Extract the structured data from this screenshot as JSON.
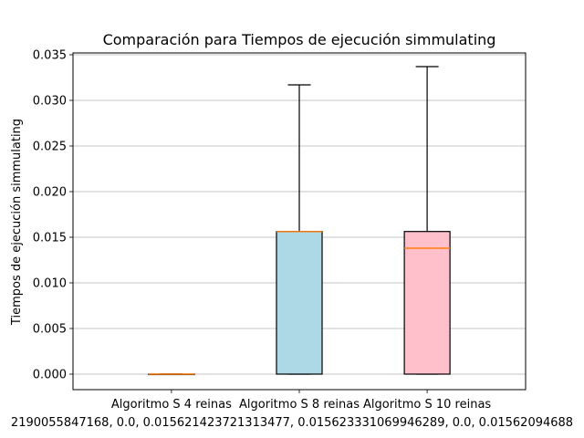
{
  "chart_data": {
    "type": "boxplot",
    "title": "Comparación para Tiempos de ejecución simmulating",
    "xlabel": "2190055847168, 0.0, 0.015621423721313477, 0.015623331069946289, 0.0, 0.01562094688",
    "ylabel": "Tiempos de ejecución simmulating",
    "ylim": [
      -0.0017,
      0.0352
    ],
    "yticks": [
      "0.000",
      "0.005",
      "0.010",
      "0.015",
      "0.020",
      "0.025",
      "0.030",
      "0.035"
    ],
    "grid": "y",
    "categories": [
      "Algoritmo S 4 reinas",
      "Algoritmo S 8 reinas",
      "Algoritmo S 10 reinas"
    ],
    "boxes": [
      {
        "whisker_low": 0.0,
        "q1": 0.0,
        "median": 0.0,
        "q3": 0.0,
        "whisker_high": 0.0,
        "color": "#ffa07a"
      },
      {
        "whisker_low": 0.0,
        "q1": 0.0,
        "median": 0.01562,
        "q3": 0.01563,
        "whisker_high": 0.0317,
        "color": "#add8e6"
      },
      {
        "whisker_low": 0.0,
        "q1": 0.0,
        "median": 0.0138,
        "q3": 0.01563,
        "whisker_high": 0.0337,
        "color": "#ffc0cb"
      }
    ],
    "median_color": "#ff7f0e"
  }
}
